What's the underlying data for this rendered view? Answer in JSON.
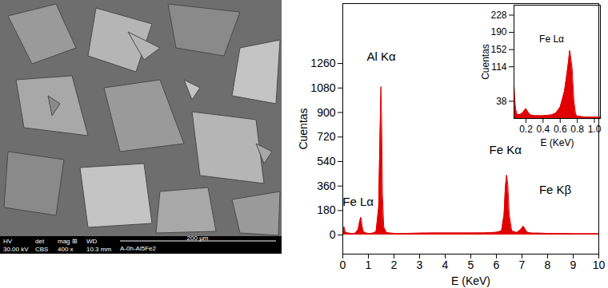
{
  "image": {
    "info_bar": {
      "labels": [
        "HV",
        "det",
        "mag ⊞",
        "WD"
      ],
      "values": [
        "30.00 kV",
        "CBS",
        "400 x",
        "10.3 mm"
      ],
      "scale_bar": "200 µm",
      "sample": "A-0h-Al5Fe2"
    }
  },
  "chart_data": [
    {
      "type": "area",
      "xlabel": "E (KeV)",
      "ylabel": "Cuentas",
      "color": "#e00000",
      "x": [
        0,
        0.05,
        0.1,
        0.2,
        0.3,
        0.4,
        0.5,
        0.6,
        0.65,
        0.7,
        0.72,
        0.75,
        0.8,
        0.9,
        1.0,
        1.1,
        1.2,
        1.3,
        1.4,
        1.45,
        1.49,
        1.52,
        1.55,
        1.6,
        1.7,
        1.8,
        2.0,
        2.5,
        3.0,
        3.5,
        4.0,
        4.5,
        5.0,
        5.5,
        6.0,
        6.2,
        6.3,
        6.35,
        6.4,
        6.45,
        6.5,
        6.6,
        6.8,
        6.95,
        7.05,
        7.1,
        7.2,
        7.4,
        7.6,
        8.0,
        8.5,
        9.0,
        9.5,
        10
      ],
      "values": [
        10,
        60,
        20,
        15,
        12,
        10,
        15,
        40,
        90,
        130,
        125,
        70,
        25,
        15,
        12,
        12,
        15,
        25,
        200,
        700,
        1090,
        800,
        300,
        60,
        20,
        15,
        12,
        12,
        14,
        15,
        15,
        15,
        15,
        16,
        20,
        30,
        150,
        350,
        440,
        360,
        150,
        30,
        18,
        40,
        65,
        50,
        20,
        14,
        14,
        12,
        12,
        10,
        10,
        10
      ],
      "xlim": [
        0,
        10
      ],
      "xticks": [
        0,
        1,
        2,
        3,
        4,
        5,
        6,
        7,
        8,
        9,
        10
      ],
      "ylim": [
        -140,
        1700
      ],
      "yticks": [
        0,
        180,
        360,
        540,
        720,
        900,
        1080,
        1260
      ],
      "annotations": [
        {
          "text": "Fe Lα",
          "x": 0.6,
          "y": 240
        },
        {
          "text": "Al Kα",
          "x": 1.5,
          "y": 1310
        },
        {
          "text": "Fe Kα",
          "x": 6.35,
          "y": 622
        },
        {
          "text": "Fe Kβ",
          "x": 8.3,
          "y": 330
        }
      ]
    },
    {
      "type": "area",
      "xlabel": "E (KeV)",
      "ylabel": "Cuentas",
      "color": "#e00000",
      "x": [
        0.06,
        0.07,
        0.08,
        0.1,
        0.15,
        0.2,
        0.22,
        0.25,
        0.3,
        0.4,
        0.5,
        0.55,
        0.6,
        0.65,
        0.68,
        0.7,
        0.71,
        0.72,
        0.74,
        0.76,
        0.78,
        0.8,
        0.9,
        1.0,
        1.07
      ],
      "values": [
        75,
        40,
        20,
        8,
        10,
        22,
        15,
        8,
        6,
        6,
        8,
        12,
        25,
        60,
        100,
        130,
        150,
        140,
        110,
        40,
        10,
        5,
        3,
        3,
        3
      ],
      "xlim": [
        0.06,
        1.07
      ],
      "xticks": [
        0.2,
        0.4,
        0.6,
        0.8,
        {
          "value": 1,
          "label": "1.0"
        }
      ],
      "ylim": [
        0,
        250
      ],
      "yticks": [
        38,
        114,
        152,
        190,
        228
      ],
      "annotations": [
        {
          "text": "Fe Lα",
          "x": 0.5,
          "y": 175
        }
      ]
    }
  ]
}
